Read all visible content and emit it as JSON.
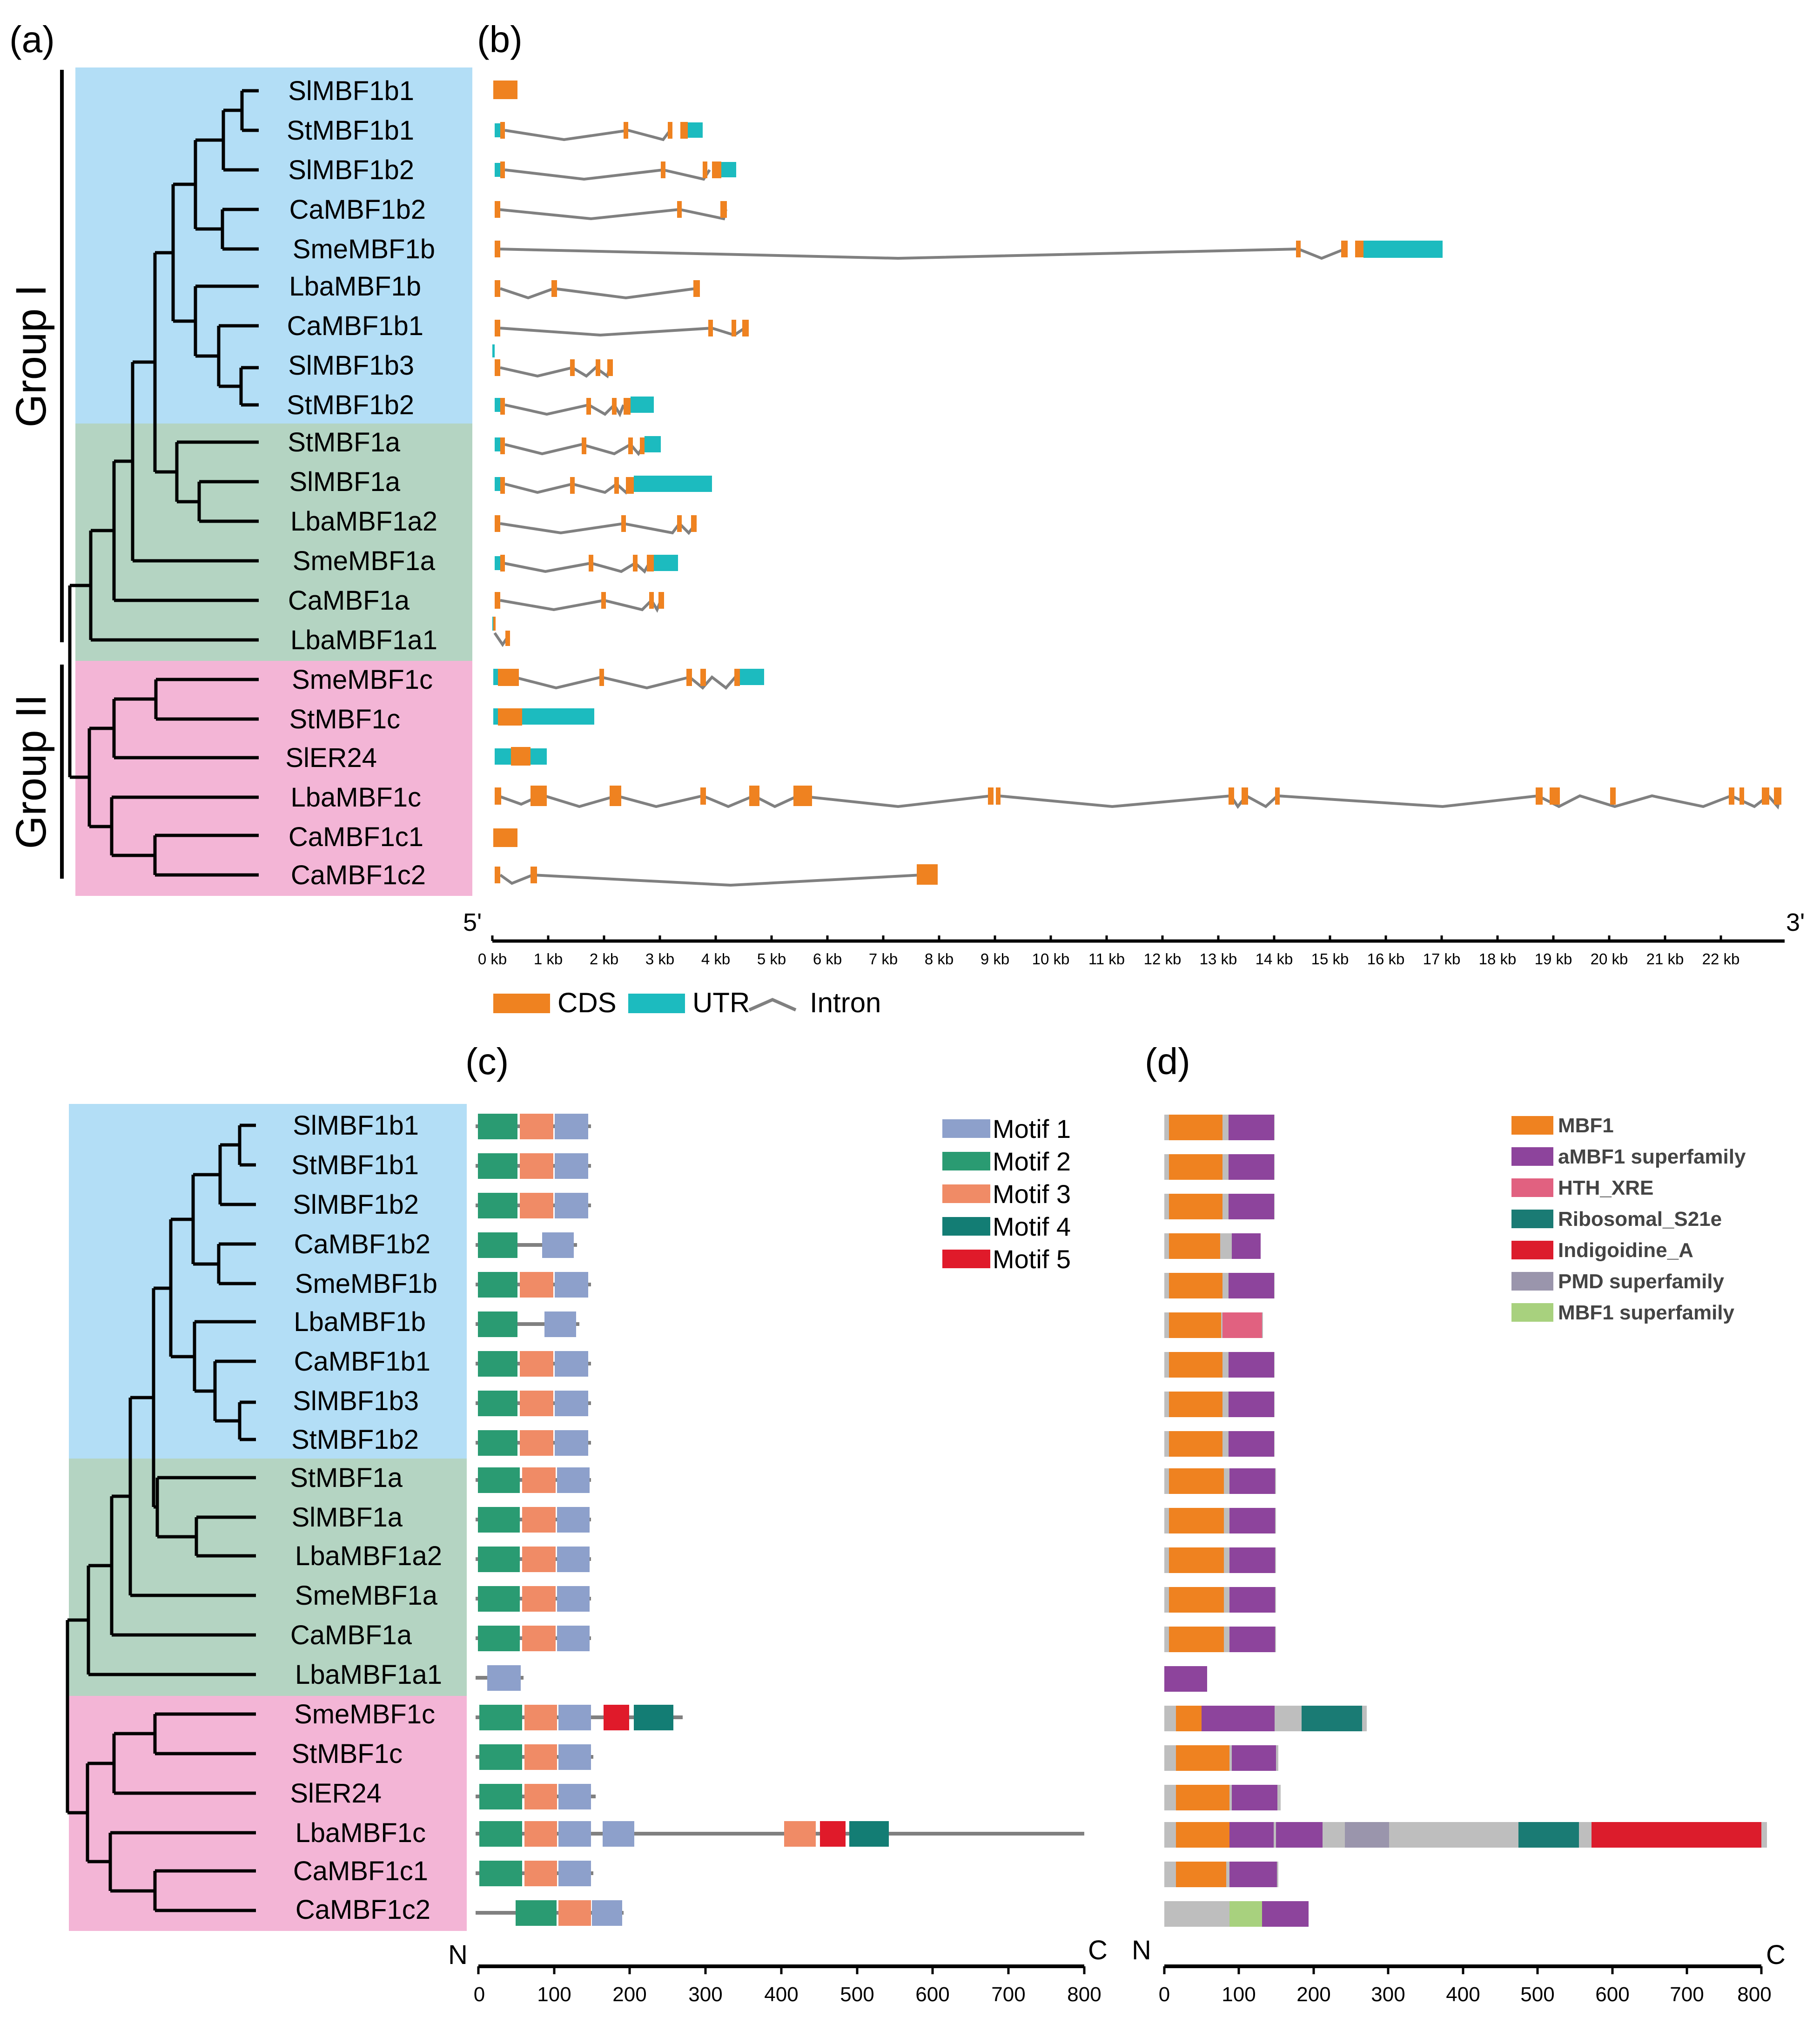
{
  "panel_labels": {
    "a": "(a)",
    "b": "(b)",
    "c": "(c)",
    "d": "(d)"
  },
  "groups": {
    "group1": "Group I",
    "group2": "Group II"
  },
  "colors": {
    "group1": "#b3def6",
    "group_mid": "#b4d4c2",
    "group2": "#f3b5d6",
    "cds": "#ef8220",
    "utr": "#1cbbbf",
    "intron": "#808080",
    "motif1": "#8da0cb",
    "motif2": "#2a9b72",
    "motif3": "#f08b66",
    "motif4": "#137d74",
    "motif5": "#e01a2a",
    "MBF1": "#ef8220",
    "aMBF1": "#8d449c",
    "HTH_XRE": "#e16180",
    "Ribosomal_S21e": "#1a7b74",
    "Indigoidine_A": "#dc1c2c",
    "PMD": "#9a95ac",
    "MBF1_super": "#a8d17e",
    "protein_line": "#bebebe"
  },
  "genes": [
    "SlMBF1b1",
    "StMBF1b1",
    "SlMBF1b2",
    "CaMBF1b2",
    "SmeMBF1b",
    "LbaMBF1b",
    "CaMBF1b1",
    "SlMBF1b3",
    "StMBF1b2",
    "StMBF1a",
    "SlMBF1a",
    "LbaMBF1a2",
    "SmeMBF1a",
    "CaMBF1a",
    "LbaMBF1a1",
    "SmeMBF1c",
    "StMBF1c",
    "SlER24",
    "LbaMBF1c",
    "CaMBF1c1",
    "CaMBF1c2"
  ],
  "panel_b": {
    "axis_five": "5'",
    "axis_three": "3'",
    "axis_ticks": [
      "0 kb",
      "1 kb",
      "2 kb",
      "3 kb",
      "4 kb",
      "5 kb",
      "6 kb",
      "7 kb",
      "8 kb",
      "9 kb",
      "10 kb",
      "11 kb",
      "12 kb",
      "13 kb",
      "14 kb",
      "15 kb",
      "16 kb",
      "17 kb",
      "18 kb",
      "19 kb",
      "20 kb",
      "21 kb",
      "22 kb"
    ],
    "legend": {
      "cds": "CDS",
      "utr": "UTR",
      "intron": "Intron"
    }
  },
  "panel_c": {
    "legend": [
      "Motif 1",
      "Motif 2",
      "Motif 3",
      "Motif 4",
      "Motif 5"
    ],
    "axis_n": "N",
    "axis_c": "C",
    "axis_ticks": [
      "0",
      "100",
      "200",
      "300",
      "400",
      "500",
      "600",
      "700",
      "800"
    ]
  },
  "panel_d": {
    "legend": [
      "MBF1",
      "aMBF1 superfamily",
      "HTH_XRE",
      "Ribosomal_S21e",
      "Indigoidine_A",
      "PMD superfamily",
      "MBF1 superfamily"
    ],
    "axis_n": "N",
    "axis_c": "C",
    "axis_ticks": [
      "0",
      "100",
      "200",
      "300",
      "400",
      "500",
      "600",
      "700",
      "800"
    ]
  }
}
